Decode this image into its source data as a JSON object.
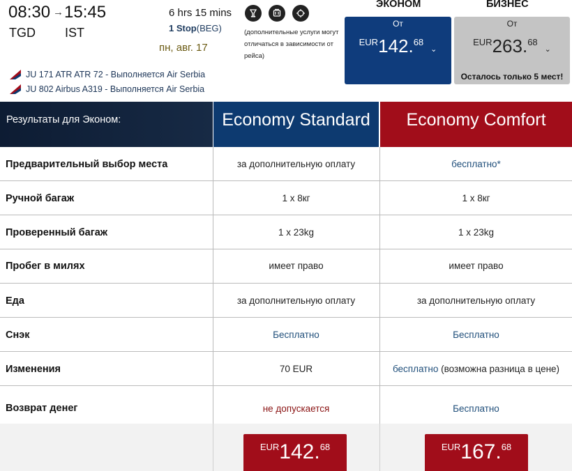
{
  "flight": {
    "dep_time": "08:30",
    "arr_time": "15:45",
    "arrow": "→",
    "dep_code": "TGD",
    "arr_code": "IST",
    "duration": "6 hrs 15 mins",
    "stops": "1 Stop",
    "stop_via": "(BEG)",
    "date": "пн, авг. 17",
    "services_note": "(дополнительные услуги могут отличаться в зависимости от рейса)",
    "service_icons": [
      "drink-service-icon",
      "meal-service-icon",
      "snack-service-icon"
    ],
    "segments": [
      "JU 171 ATR ATR 72 - Выполняется Air Serbia",
      "JU 802 Airbus A319 - Выполняется Air Serbia"
    ]
  },
  "fares": {
    "economy": {
      "label": "ЭКОНОМ",
      "from": "От",
      "currency": "EUR",
      "amount": "142.",
      "decimals": "68",
      "color": "#0f3c7c"
    },
    "business": {
      "label": "БИЗНЕС",
      "from": "От",
      "currency": "EUR",
      "amount": "263.",
      "decimals": "68",
      "alert": "Осталось только 5 мест!",
      "color": "#c4c4c4"
    }
  },
  "table": {
    "header_label": "Результаты для Эконом:",
    "col_std": "Economy Standard",
    "col_cmf": "Economy Comfort",
    "rows": [
      {
        "label": "Предварительный выбор места",
        "std": "за дополнительную оплату",
        "cmf": "бесплатно*"
      },
      {
        "label": "Ручной багаж",
        "std": "1 x 8кг",
        "cmf": "1 x 8кг"
      },
      {
        "label": "Проверенный багаж",
        "std": "1 x 23kg",
        "cmf": "1 x 23kg"
      },
      {
        "label": "Пробег в милях",
        "std": "имеет право",
        "cmf": "имеет право"
      },
      {
        "label": "Еда",
        "std": "за дополнительную оплату",
        "cmf": "за дополнительную оплату"
      },
      {
        "label": "Снэк",
        "std": "Бесплатно",
        "cmf": "Бесплатно"
      },
      {
        "label": "Изменения",
        "std": "70 EUR",
        "cmf_a": "бесплатно",
        "cmf_b": " (возможна разница в цене)"
      },
      {
        "label": "Возврат денег",
        "std": "не допускается",
        "cmf": "Бесплатно"
      }
    ],
    "price_std": {
      "currency": "EUR",
      "amount": "142.",
      "decimals": "68"
    },
    "price_cmf": {
      "currency": "EUR",
      "amount": "167.",
      "decimals": "68"
    }
  },
  "colors": {
    "navy": "#0d3a70",
    "brand_red": "#a10d1a",
    "header_dark": "#0d1c33"
  }
}
